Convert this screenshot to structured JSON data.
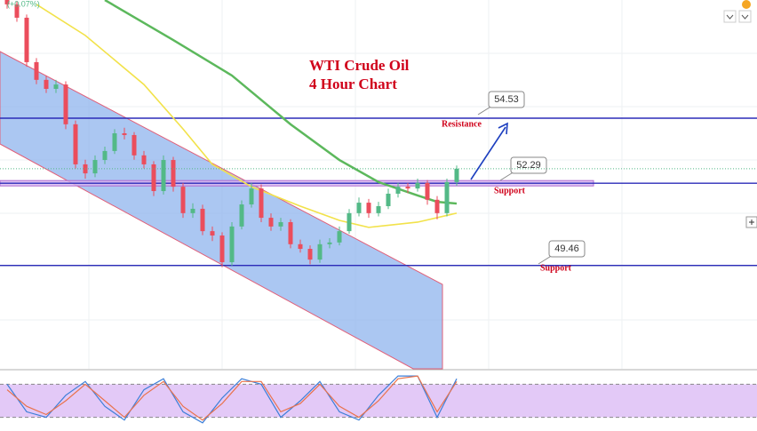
{
  "header": {
    "change": "(+0.07%)"
  },
  "chart_data": [
    {
      "type": "candlestick",
      "title": [
        "WTI Crude Oil",
        "4 Hour Chart"
      ],
      "ylim": [
        45.9,
        58.6
      ],
      "up_color": "#53b987",
      "down_color": "#eb4d5c",
      "open": [
        58.6,
        58.45,
        57.99,
        56.46,
        55.85,
        55.54,
        55.69,
        54.32,
        52.94,
        52.63,
        53.09,
        53.4,
        54.01,
        53.95,
        53.25,
        52.94,
        52.02,
        53.09,
        52.17,
        51.26,
        51.41,
        50.64,
        50.49,
        49.57,
        50.8,
        51.56,
        52.11,
        51.1,
        50.8,
        50.95,
        50.19,
        50.03,
        49.66,
        50.19,
        50.25,
        50.64,
        51.26,
        51.62,
        51.26,
        51.5,
        51.93,
        52.17,
        52.11,
        52.3,
        51.72,
        51.26,
        52.33
      ],
      "high": [
        58.7,
        58.55,
        58.1,
        56.6,
        56.0,
        55.85,
        55.8,
        54.45,
        53.1,
        53.25,
        53.55,
        54.15,
        54.2,
        54.05,
        53.4,
        53.05,
        53.25,
        53.2,
        52.3,
        51.6,
        51.55,
        50.8,
        50.6,
        50.95,
        51.7,
        52.3,
        52.25,
        51.25,
        51.1,
        51.05,
        50.35,
        50.15,
        50.35,
        50.4,
        50.8,
        51.4,
        51.8,
        51.75,
        51.65,
        52.1,
        52.3,
        52.3,
        52.45,
        52.4,
        51.85,
        52.45,
        52.9
      ],
      "low": [
        58.3,
        57.85,
        56.3,
        55.7,
        55.4,
        55.4,
        54.15,
        52.8,
        52.45,
        52.5,
        52.95,
        53.3,
        53.8,
        53.1,
        52.8,
        51.85,
        51.9,
        52.0,
        51.1,
        51.1,
        50.5,
        50.3,
        49.4,
        49.45,
        50.7,
        51.45,
        50.95,
        50.65,
        50.65,
        50.05,
        49.9,
        49.5,
        49.55,
        50.05,
        50.15,
        50.55,
        51.15,
        51.1,
        51.15,
        51.4,
        51.8,
        51.95,
        52.0,
        51.55,
        51.05,
        51.15,
        52.2
      ],
      "close": [
        58.45,
        57.99,
        56.46,
        55.85,
        55.54,
        55.69,
        54.32,
        52.94,
        52.63,
        53.09,
        53.4,
        54.01,
        53.95,
        53.25,
        52.94,
        52.02,
        53.09,
        52.17,
        51.26,
        51.41,
        50.64,
        50.49,
        49.57,
        50.8,
        51.56,
        52.11,
        51.1,
        50.8,
        50.95,
        50.19,
        50.03,
        49.66,
        50.19,
        50.25,
        50.64,
        51.26,
        51.62,
        51.26,
        51.5,
        51.93,
        52.17,
        52.11,
        52.3,
        51.72,
        51.26,
        52.33,
        52.79
      ],
      "series": [
        {
          "color": "#5cb85c",
          "x": [
            10,
            17,
            23,
            29,
            34,
            38,
            42,
            44,
            46
          ],
          "values": [
            58.6,
            57.22,
            56.0,
            54.32,
            53.09,
            52.33,
            51.87,
            51.65,
            51.59
          ]
        },
        {
          "color": "#f2e24a",
          "x": [
            3,
            8,
            14,
            18,
            21,
            25,
            30,
            34,
            37,
            42,
            46
          ],
          "values": [
            58.45,
            57.38,
            55.69,
            54.16,
            52.94,
            52.17,
            51.5,
            51.01,
            50.77,
            50.95,
            51.26
          ]
        }
      ],
      "levels": [
        {
          "value": 54.53,
          "text": "Resistance",
          "color": "#2b2bb8"
        },
        {
          "value": 52.29,
          "text": "Support",
          "color": "#2b2bb8"
        },
        {
          "value": 49.46,
          "text": "Support",
          "color": "#2b2bb8"
        }
      ]
    },
    {
      "type": "line",
      "ylim": [
        0,
        100
      ],
      "band": [
        20,
        80
      ],
      "series": [
        {
          "color": "#3d7fd8",
          "x": [
            0,
            2,
            4,
            6,
            8,
            10,
            12,
            14,
            16,
            18,
            20,
            22,
            24,
            26,
            28,
            30,
            32,
            34,
            36,
            38,
            40,
            42,
            44,
            46
          ],
          "values": [
            80,
            30,
            20,
            60,
            85,
            40,
            15,
            70,
            90,
            30,
            10,
            55,
            90,
            80,
            20,
            50,
            85,
            30,
            15,
            60,
            95,
            95,
            20,
            90
          ]
        },
        {
          "color": "#e9724c",
          "x": [
            0,
            2,
            4,
            6,
            8,
            10,
            12,
            14,
            16,
            18,
            20,
            22,
            24,
            26,
            28,
            30,
            32,
            34,
            36,
            38,
            40,
            42,
            44,
            46
          ],
          "values": [
            70,
            40,
            25,
            50,
            80,
            50,
            20,
            60,
            85,
            40,
            15,
            45,
            85,
            85,
            30,
            45,
            80,
            40,
            20,
            50,
            90,
            95,
            30,
            85
          ]
        }
      ]
    }
  ]
}
